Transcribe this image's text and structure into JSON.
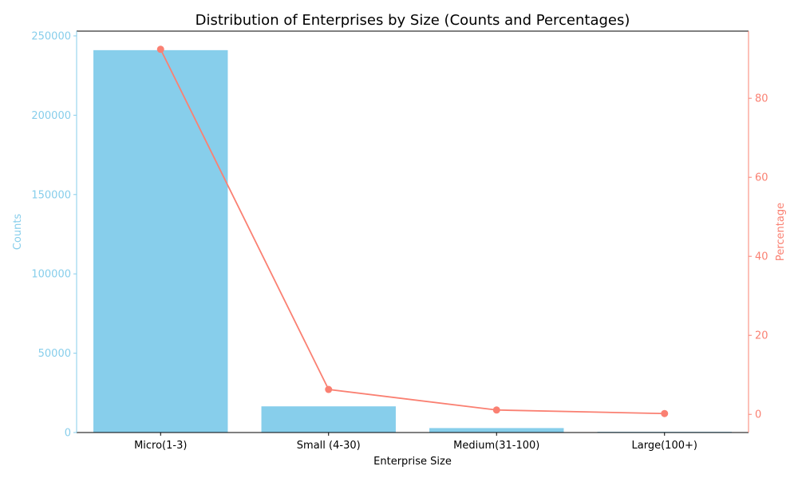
{
  "chart_data": {
    "type": "bar",
    "title": "Distribution of Enterprises by Size (Counts and Percentages)",
    "xlabel": "Enterprise Size",
    "ylabel": "Counts",
    "y2label": "Percentage",
    "categories": [
      "Micro(1-3)",
      "Small (4-30)",
      "Medium(31-100)",
      "Large(100+)"
    ],
    "series": [
      {
        "type": "bar",
        "axis": "left",
        "values": [
          241000,
          16500,
          2800,
          450
        ]
      },
      {
        "type": "line",
        "axis": "right",
        "values": [
          92.4,
          6.3,
          1.1,
          0.2
        ]
      }
    ],
    "ylim": [
      0,
      253000
    ],
    "y2lim": [
      -4.6,
      97.0
    ],
    "yticks": [
      "0",
      "50000",
      "100000",
      "150000",
      "200000",
      "250000"
    ],
    "y2ticks": [
      "0",
      "20",
      "40",
      "60",
      "80"
    ],
    "grid": false,
    "colors": {
      "bar": "#87ceeb",
      "line": "#fa8072",
      "axis": "#000000"
    }
  }
}
